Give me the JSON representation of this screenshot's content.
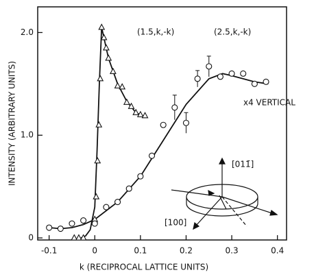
{
  "chart_data": {
    "type": "scatter",
    "x_label": "k (RECIPROCAL LATTICE UNITS)",
    "y_label": "INTENSITY (ARBITRARY UNITS)",
    "xlim": [
      -0.125,
      0.42
    ],
    "ylim": [
      -0.02,
      2.25
    ],
    "xticks": [
      -0.1,
      0,
      0.1,
      0.2,
      0.3,
      0.4
    ],
    "yticks": [
      0,
      {
        "value": 1,
        "label": "1.0"
      },
      {
        "value": 2,
        "label": "2.0"
      }
    ],
    "color": "#111111",
    "series": [
      {
        "name": "(1.5,k,-k)",
        "marker": "triangle",
        "x": [
          -0.045,
          -0.035,
          -0.025,
          0.0,
          0.003,
          0.006,
          0.009,
          0.012,
          0.015,
          0.02,
          0.025,
          0.03,
          0.04,
          0.05,
          0.06,
          0.07,
          0.08,
          0.09,
          0.1,
          0.11
        ],
        "values": [
          0,
          0,
          0,
          0.18,
          0.4,
          0.75,
          1.1,
          1.55,
          2.05,
          1.95,
          1.85,
          1.75,
          1.62,
          1.48,
          1.47,
          1.32,
          1.28,
          1.22,
          1.2,
          1.19
        ]
      },
      {
        "name": "(2.5,k,-k)",
        "marker": "circle",
        "x": [
          -0.1,
          -0.075,
          -0.05,
          -0.025,
          0,
          0.025,
          0.05,
          0.075,
          0.1,
          0.125,
          0.15,
          0.175,
          0.2,
          0.225,
          0.25,
          0.275,
          0.3,
          0.325,
          0.35,
          0.375
        ],
        "values": [
          0.1,
          0.09,
          0.14,
          0.17,
          0.14,
          0.3,
          0.35,
          0.48,
          0.6,
          0.8,
          1.1,
          1.27,
          1.12,
          1.55,
          1.67,
          1.57,
          1.6,
          1.6,
          1.5,
          1.52
        ],
        "errors": [
          null,
          null,
          null,
          null,
          null,
          null,
          null,
          null,
          null,
          null,
          null,
          0.12,
          0.1,
          0.08,
          0.1,
          null,
          null,
          null,
          null,
          null
        ]
      }
    ],
    "fits": [
      {
        "x": [
          -0.03,
          -0.02,
          -0.01,
          0,
          0.005,
          0.01,
          0.015,
          0.02,
          0.03,
          0.05,
          0.07,
          0.09,
          0.11
        ],
        "values": [
          0,
          0.02,
          0.08,
          0.3,
          0.85,
          1.5,
          2.05,
          1.95,
          1.75,
          1.5,
          1.33,
          1.22,
          1.18
        ]
      },
      {
        "x": [
          -0.1,
          -0.075,
          -0.05,
          -0.025,
          0,
          0.05,
          0.1,
          0.15,
          0.2,
          0.25,
          0.28,
          0.3,
          0.35,
          0.38
        ],
        "values": [
          0.1,
          0.09,
          0.1,
          0.13,
          0.18,
          0.35,
          0.6,
          0.95,
          1.3,
          1.55,
          1.6,
          1.58,
          1.52,
          1.5
        ]
      }
    ],
    "annotation": "x4 VERTICAL",
    "inset_labels": [
      "[011̄]",
      "[100]"
    ]
  }
}
